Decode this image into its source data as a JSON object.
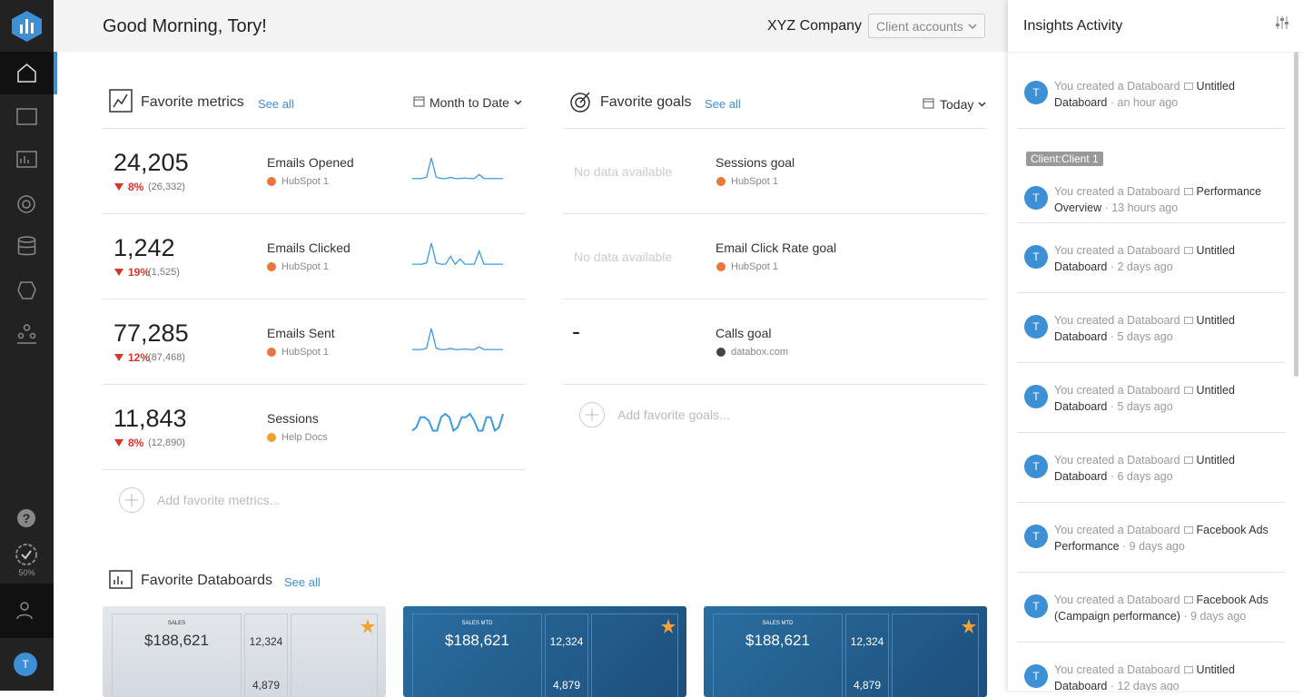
{
  "header": {
    "greeting": "Good Morning, Tory!",
    "company": "XYZ Company",
    "accounts": "Client accounts"
  },
  "sidebar": {
    "progress": "50%",
    "avatar": "T"
  },
  "metrics": {
    "title": "Favorite metrics",
    "see_all": "See all",
    "period": "Month to Date",
    "add": "Add favorite metrics...",
    "items": [
      {
        "value": "24,205",
        "change": "8%",
        "previous": "(26,332)",
        "name": "Emails Opened",
        "source": "HubSpot 1",
        "spark": [
          1,
          1,
          1,
          1.5,
          8,
          1.5,
          1,
          1,
          1.4,
          1,
          1,
          1.2,
          1,
          1,
          2.4,
          1,
          1,
          1,
          1,
          1
        ]
      },
      {
        "value": "1,242",
        "change": "19%",
        "previous": "(1,525)",
        "name": "Emails Clicked",
        "source": "HubSpot 1",
        "spark": [
          1,
          1,
          1,
          1.5,
          9,
          1.5,
          1,
          1,
          4,
          1,
          3,
          1,
          1,
          1,
          6,
          1,
          1,
          1,
          1,
          1
        ]
      },
      {
        "value": "77,285",
        "change": "12%",
        "previous": "(87,468)",
        "name": "Emails Sent",
        "source": "HubSpot 1",
        "spark": [
          1,
          1,
          1,
          1.5,
          9,
          1.5,
          1,
          1,
          1.4,
          1,
          1,
          1.2,
          1,
          1,
          2,
          1,
          1,
          1,
          1,
          1
        ]
      },
      {
        "value": "11,843",
        "change": "8%",
        "previous": "(12,890)",
        "name": "Sessions",
        "source": "Help Docs",
        "spark": [
          2,
          3,
          6,
          6,
          5,
          2,
          2,
          6,
          7,
          6,
          2,
          3,
          6,
          6,
          7,
          5,
          2,
          2,
          6,
          6,
          2,
          3,
          7
        ]
      }
    ]
  },
  "goals": {
    "title": "Favorite goals",
    "see_all": "See all",
    "period": "Today",
    "add": "Add favorite goals...",
    "items": [
      {
        "value": "No data available",
        "name": "Sessions goal",
        "source": "HubSpot 1"
      },
      {
        "value": "No data available",
        "name": "Email Click Rate goal",
        "source": "HubSpot 1"
      },
      {
        "value": "-",
        "name": "Calls goal",
        "source": "databox.com"
      }
    ]
  },
  "databoards": {
    "title": "Favorite Databoards",
    "see_all": "See all",
    "cards": [
      {
        "label": "SALES",
        "value": "$188,621",
        "users": "12,324",
        "visitors": "4,879"
      },
      {
        "label": "SALES MTD",
        "value": "$188,621",
        "users": "12,324",
        "visitors": "4,879"
      },
      {
        "label": "SALES MTD",
        "value": "$188,621",
        "users": "12,324",
        "visitors": "4,879"
      }
    ]
  },
  "insights": {
    "title": "Insights Activity",
    "items": [
      {
        "avatar": "T",
        "prefix": "You created a Databoard",
        "name": "Untitled Databoard",
        "time": "· an hour ago"
      },
      {
        "tag": "Client:Client 1",
        "avatar": "T",
        "prefix": "You created a Databoard",
        "name": "Performance Overview",
        "time": "· 13 hours ago"
      },
      {
        "avatar": "T",
        "prefix": "You created a Databoard",
        "name": "Untitled Databoard",
        "time": "· 2 days ago"
      },
      {
        "avatar": "T",
        "prefix": "You created a Databoard",
        "name": "Untitled Databoard",
        "time": "· 5 days ago"
      },
      {
        "avatar": "T",
        "prefix": "You created a Databoard",
        "name": "Untitled Databoard",
        "time": "· 5 days ago"
      },
      {
        "avatar": "T",
        "prefix": "You created a Databoard",
        "name": "Untitled Databoard",
        "time": "· 6 days ago"
      },
      {
        "avatar": "T",
        "prefix": "You created a Databoard",
        "name": "Facebook Ads Performance",
        "time": "· 9 days ago"
      },
      {
        "avatar": "T",
        "prefix": "You created a Databoard",
        "name": "Facebook Ads (Campaign performance)",
        "time": "· 9 days ago"
      },
      {
        "avatar": "T",
        "prefix": "You created a Databoard",
        "name": "Untitled Databoard",
        "time": "· 12 days ago"
      }
    ]
  }
}
